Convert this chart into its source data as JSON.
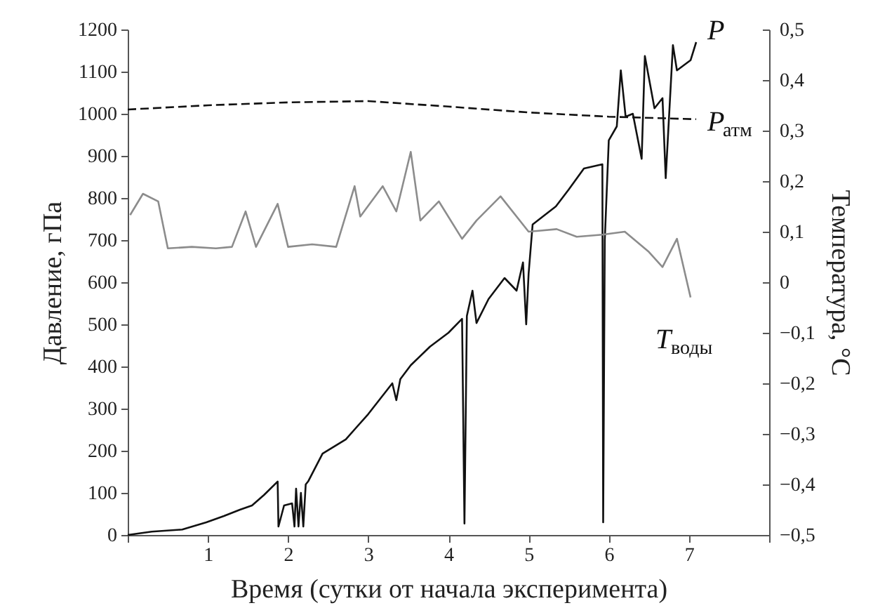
{
  "chart_data": {
    "type": "line",
    "xlabel": "Время (сутки от начала эксперимента)",
    "ylabel": "Давление, гПа",
    "y2label": "Температура, °С",
    "xlim": [
      0,
      8
    ],
    "xticks": [
      {
        "value": 0,
        "label": null
      },
      1,
      2,
      3,
      4,
      5,
      6,
      7,
      {
        "value": 8,
        "label": null
      }
    ],
    "ylim": [
      0,
      1200
    ],
    "yticks": [
      0,
      100,
      200,
      300,
      400,
      500,
      600,
      700,
      800,
      900,
      1000,
      1100,
      1200
    ],
    "y2lim": [
      -0.5,
      0.5
    ],
    "y2ticks": [
      {
        "value": -0.5,
        "label": "−0,5"
      },
      {
        "value": -0.4,
        "label": "−0,4"
      },
      {
        "value": -0.3,
        "label": "−0,3"
      },
      {
        "value": -0.2,
        "label": "−0,2"
      },
      {
        "value": -0.1,
        "label": "−0,1"
      },
      0,
      {
        "value": 0.1,
        "label": "0,1"
      },
      {
        "value": 0.2,
        "label": "0,2"
      },
      {
        "value": 0.3,
        "label": "0,3"
      },
      {
        "value": 0.4,
        "label": "0,4"
      },
      {
        "value": 0.5,
        "label": "0,5"
      }
    ],
    "grid": false,
    "series": [
      {
        "name": "P",
        "color": "#111111",
        "line_style": "solid",
        "x": [
          0,
          0.3,
          0.68,
          0.98,
          1.2,
          1.4,
          1.55,
          1.7,
          1.87,
          1.88,
          1.95,
          2.05,
          2.08,
          2.1,
          2.13,
          2.16,
          2.19,
          2.22,
          2.25,
          2.43,
          2.72,
          3.0,
          3.3,
          3.35,
          3.4,
          3.53,
          3.77,
          4.0,
          4.17,
          4.2,
          4.23,
          4.3,
          4.35,
          4.5,
          4.7,
          4.85,
          4.93,
          4.97,
          5.0,
          5.05,
          5.34,
          5.5,
          5.69,
          5.92,
          5.93,
          5.95,
          6.0,
          6.1,
          6.15,
          6.21,
          6.3,
          6.41,
          6.45,
          6.57,
          6.67,
          6.71,
          6.8,
          6.85,
          7.02,
          7.09
        ],
        "values": [
          0,
          8,
          13,
          30,
          45,
          60,
          70,
          95,
          127,
          20,
          70,
          75,
          20,
          110,
          20,
          100,
          20,
          120,
          127,
          193,
          227,
          287,
          360,
          320,
          370,
          403,
          447,
          480,
          513,
          27,
          520,
          580,
          503,
          560,
          610,
          580,
          647,
          500,
          620,
          737,
          780,
          820,
          870,
          880,
          30,
          700,
          937,
          970,
          1103,
          993,
          1000,
          893,
          1137,
          1013,
          1037,
          847,
          1163,
          1103,
          1127,
          1170
        ]
      },
      {
        "name": "P$_{атм}$",
        "color": "#111111",
        "line_style": "dashed",
        "x": [
          0,
          1,
          2,
          3,
          4,
          5,
          6,
          7.09
        ],
        "values": [
          1010,
          1020,
          1027,
          1030,
          1017,
          1003,
          993,
          987
        ]
      },
      {
        "name": "T$_{воды}$",
        "color": "#8c8c8c",
        "line_style": "solid",
        "axis": "y2",
        "x": [
          0.03,
          0.19,
          0.38,
          0.5,
          0.8,
          1.1,
          1.3,
          1.47,
          1.6,
          1.87,
          2.0,
          2.3,
          2.6,
          2.83,
          2.9,
          3.18,
          3.35,
          3.53,
          3.65,
          3.88,
          4.17,
          4.35,
          4.65,
          5.0,
          5.35,
          5.6,
          5.92,
          6.2,
          6.5,
          6.67,
          6.85,
          7.02
        ],
        "values": [
          0.133,
          0.175,
          0.16,
          0.067,
          0.07,
          0.067,
          0.07,
          0.14,
          0.07,
          0.155,
          0.07,
          0.075,
          0.07,
          0.19,
          0.13,
          0.19,
          0.14,
          0.258,
          0.122,
          0.16,
          0.086,
          0.122,
          0.17,
          0.1,
          0.105,
          0.09,
          0.094,
          0.1,
          0.06,
          0.03,
          0.086,
          -0.03
        ]
      }
    ]
  }
}
